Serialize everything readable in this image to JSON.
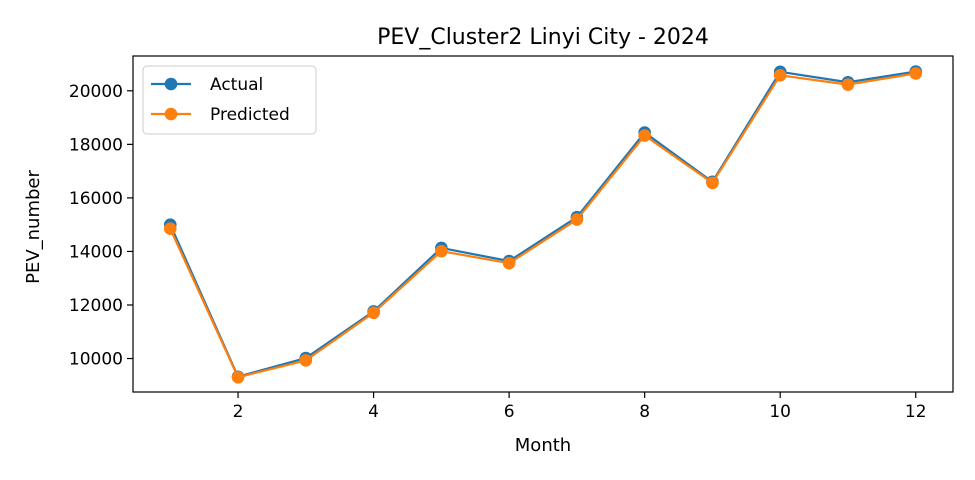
{
  "chart_data": {
    "type": "line",
    "title": "PEV_Cluster2 Linyi City - 2024",
    "xlabel": "Month",
    "ylabel": "PEV_number",
    "x": [
      1,
      2,
      3,
      4,
      5,
      6,
      7,
      8,
      9,
      10,
      11,
      12
    ],
    "xlim": [
      0.45,
      12.55
    ],
    "ylim": [
      8750,
      21300
    ],
    "xticks": [
      2,
      4,
      6,
      8,
      10,
      12
    ],
    "yticks": [
      10000,
      12000,
      14000,
      16000,
      18000,
      20000
    ],
    "xtick_labels": [
      "2",
      "4",
      "6",
      "8",
      "10",
      "12"
    ],
    "ytick_labels": [
      "10000",
      "12000",
      "14000",
      "16000",
      "18000",
      "20000"
    ],
    "grid": false,
    "legend_position": "top-left",
    "series": [
      {
        "name": "Actual",
        "color": "#1f77b4",
        "marker": "circle",
        "values": [
          15000,
          9320,
          10020,
          11760,
          14130,
          13640,
          15280,
          18440,
          16600,
          20710,
          20320,
          20720
        ]
      },
      {
        "name": "Predicted",
        "color": "#ff7f0e",
        "marker": "circle",
        "values": [
          14850,
          9300,
          9930,
          11710,
          14010,
          13560,
          15190,
          18330,
          16560,
          20580,
          20230,
          20650
        ]
      }
    ]
  }
}
